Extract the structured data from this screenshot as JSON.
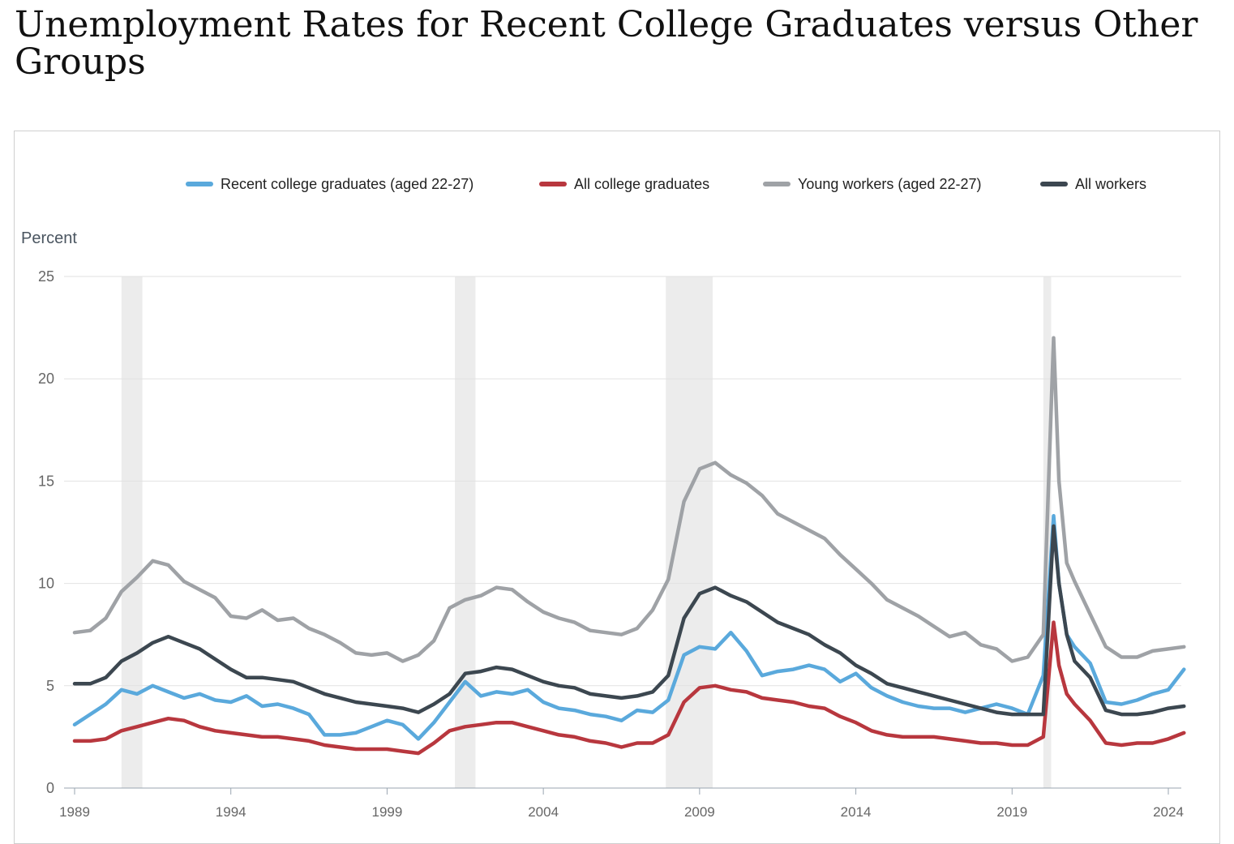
{
  "title": "Unemployment Rates for Recent College Graduates versus Other Groups",
  "chart_data": {
    "type": "line",
    "ylabel": "Percent",
    "xlabel": "",
    "ylim": [
      0,
      25
    ],
    "xlim": [
      1989.0,
      2024.6
    ],
    "yticks": [
      0,
      5,
      10,
      15,
      20,
      25
    ],
    "xticks": [
      1989,
      1994,
      1999,
      2004,
      2009,
      2014,
      2019,
      2024
    ],
    "grid": true,
    "legend_position": "top",
    "recessions": [
      [
        1990.5,
        1991.17
      ],
      [
        2001.17,
        2001.83
      ],
      [
        2007.92,
        2009.42
      ],
      [
        2020.0,
        2020.25
      ]
    ],
    "series": [
      {
        "name": "Recent college graduates (aged 22-27)",
        "color": "#5aa9dc",
        "x": [
          1989.0,
          1989.5,
          1990.0,
          1990.5,
          1991.0,
          1991.5,
          1992.0,
          1992.5,
          1993.0,
          1993.5,
          1994.0,
          1994.5,
          1995.0,
          1995.5,
          1996.0,
          1996.5,
          1997.0,
          1997.5,
          1998.0,
          1998.5,
          1999.0,
          1999.5,
          2000.0,
          2000.5,
          2001.0,
          2001.5,
          2002.0,
          2002.5,
          2003.0,
          2003.5,
          2004.0,
          2004.5,
          2005.0,
          2005.5,
          2006.0,
          2006.5,
          2007.0,
          2007.5,
          2008.0,
          2008.5,
          2009.0,
          2009.5,
          2010.0,
          2010.5,
          2011.0,
          2011.5,
          2012.0,
          2012.5,
          2013.0,
          2013.5,
          2014.0,
          2014.5,
          2015.0,
          2015.5,
          2016.0,
          2016.5,
          2017.0,
          2017.5,
          2018.0,
          2018.5,
          2019.0,
          2019.5,
          2020.0,
          2020.33,
          2020.5,
          2020.75,
          2021.0,
          2021.5,
          2022.0,
          2022.5,
          2023.0,
          2023.5,
          2024.0,
          2024.5
        ],
        "y": [
          3.1,
          3.6,
          4.1,
          4.8,
          4.6,
          5.0,
          4.7,
          4.4,
          4.6,
          4.3,
          4.2,
          4.5,
          4.0,
          4.1,
          3.9,
          3.6,
          2.6,
          2.6,
          2.7,
          3.0,
          3.3,
          3.1,
          2.4,
          3.2,
          4.2,
          5.2,
          4.5,
          4.7,
          4.6,
          4.8,
          4.2,
          3.9,
          3.8,
          3.6,
          3.5,
          3.3,
          3.8,
          3.7,
          4.3,
          6.5,
          6.9,
          6.8,
          7.6,
          6.7,
          5.5,
          5.7,
          5.8,
          6.0,
          5.8,
          5.2,
          5.6,
          4.9,
          4.5,
          4.2,
          4.0,
          3.9,
          3.9,
          3.7,
          3.9,
          4.1,
          3.9,
          3.6,
          5.5,
          13.3,
          10.0,
          7.5,
          6.9,
          6.1,
          4.2,
          4.1,
          4.3,
          4.6,
          4.8,
          5.8
        ]
      },
      {
        "name": "All college graduates",
        "color": "#b8373e",
        "x": [
          1989.0,
          1989.5,
          1990.0,
          1990.5,
          1991.0,
          1991.5,
          1992.0,
          1992.5,
          1993.0,
          1993.5,
          1994.0,
          1994.5,
          1995.0,
          1995.5,
          1996.0,
          1996.5,
          1997.0,
          1997.5,
          1998.0,
          1998.5,
          1999.0,
          1999.5,
          2000.0,
          2000.5,
          2001.0,
          2001.5,
          2002.0,
          2002.5,
          2003.0,
          2003.5,
          2004.0,
          2004.5,
          2005.0,
          2005.5,
          2006.0,
          2006.5,
          2007.0,
          2007.5,
          2008.0,
          2008.5,
          2009.0,
          2009.5,
          2010.0,
          2010.5,
          2011.0,
          2011.5,
          2012.0,
          2012.5,
          2013.0,
          2013.5,
          2014.0,
          2014.5,
          2015.0,
          2015.5,
          2016.0,
          2016.5,
          2017.0,
          2017.5,
          2018.0,
          2018.5,
          2019.0,
          2019.5,
          2020.0,
          2020.33,
          2020.5,
          2020.75,
          2021.0,
          2021.5,
          2022.0,
          2022.5,
          2023.0,
          2023.5,
          2024.0,
          2024.5
        ],
        "y": [
          2.3,
          2.3,
          2.4,
          2.8,
          3.0,
          3.2,
          3.4,
          3.3,
          3.0,
          2.8,
          2.7,
          2.6,
          2.5,
          2.5,
          2.4,
          2.3,
          2.1,
          2.0,
          1.9,
          1.9,
          1.9,
          1.8,
          1.7,
          2.2,
          2.8,
          3.0,
          3.1,
          3.2,
          3.2,
          3.0,
          2.8,
          2.6,
          2.5,
          2.3,
          2.2,
          2.0,
          2.2,
          2.2,
          2.6,
          4.2,
          4.9,
          5.0,
          4.8,
          4.7,
          4.4,
          4.3,
          4.2,
          4.0,
          3.9,
          3.5,
          3.2,
          2.8,
          2.6,
          2.5,
          2.5,
          2.5,
          2.4,
          2.3,
          2.2,
          2.2,
          2.1,
          2.1,
          2.5,
          8.1,
          6.0,
          4.6,
          4.1,
          3.3,
          2.2,
          2.1,
          2.2,
          2.2,
          2.4,
          2.7
        ]
      },
      {
        "name": "Young workers (aged 22-27)",
        "color": "#9fa2a6",
        "x": [
          1989.0,
          1989.5,
          1990.0,
          1990.5,
          1991.0,
          1991.5,
          1992.0,
          1992.5,
          1993.0,
          1993.5,
          1994.0,
          1994.5,
          1995.0,
          1995.5,
          1996.0,
          1996.5,
          1997.0,
          1997.5,
          1998.0,
          1998.5,
          1999.0,
          1999.5,
          2000.0,
          2000.5,
          2001.0,
          2001.5,
          2002.0,
          2002.5,
          2003.0,
          2003.5,
          2004.0,
          2004.5,
          2005.0,
          2005.5,
          2006.0,
          2006.5,
          2007.0,
          2007.5,
          2008.0,
          2008.5,
          2009.0,
          2009.5,
          2010.0,
          2010.5,
          2011.0,
          2011.5,
          2012.0,
          2012.5,
          2013.0,
          2013.5,
          2014.0,
          2014.5,
          2015.0,
          2015.5,
          2016.0,
          2016.5,
          2017.0,
          2017.5,
          2018.0,
          2018.5,
          2019.0,
          2019.5,
          2020.0,
          2020.33,
          2020.5,
          2020.75,
          2021.0,
          2021.5,
          2022.0,
          2022.5,
          2023.0,
          2023.5,
          2024.0,
          2024.5
        ],
        "y": [
          7.6,
          7.7,
          8.3,
          9.6,
          10.3,
          11.1,
          10.9,
          10.1,
          9.7,
          9.3,
          8.4,
          8.3,
          8.7,
          8.2,
          8.3,
          7.8,
          7.5,
          7.1,
          6.6,
          6.5,
          6.6,
          6.2,
          6.5,
          7.2,
          8.8,
          9.2,
          9.4,
          9.8,
          9.7,
          9.1,
          8.6,
          8.3,
          8.1,
          7.7,
          7.6,
          7.5,
          7.8,
          8.7,
          10.2,
          14.0,
          15.6,
          15.9,
          15.3,
          14.9,
          14.3,
          13.4,
          13.0,
          12.6,
          12.2,
          11.4,
          10.7,
          10.0,
          9.2,
          8.8,
          8.4,
          7.9,
          7.4,
          7.6,
          7.0,
          6.8,
          6.2,
          6.4,
          7.5,
          22.0,
          15.0,
          11.0,
          10.1,
          8.5,
          6.9,
          6.4,
          6.4,
          6.7,
          6.8,
          6.9
        ]
      },
      {
        "name": "All workers",
        "color": "#3c4750",
        "x": [
          1989.0,
          1989.5,
          1990.0,
          1990.5,
          1991.0,
          1991.5,
          1992.0,
          1992.5,
          1993.0,
          1993.5,
          1994.0,
          1994.5,
          1995.0,
          1995.5,
          1996.0,
          1996.5,
          1997.0,
          1997.5,
          1998.0,
          1998.5,
          1999.0,
          1999.5,
          2000.0,
          2000.5,
          2001.0,
          2001.5,
          2002.0,
          2002.5,
          2003.0,
          2003.5,
          2004.0,
          2004.5,
          2005.0,
          2005.5,
          2006.0,
          2006.5,
          2007.0,
          2007.5,
          2008.0,
          2008.5,
          2009.0,
          2009.5,
          2010.0,
          2010.5,
          2011.0,
          2011.5,
          2012.0,
          2012.5,
          2013.0,
          2013.5,
          2014.0,
          2014.5,
          2015.0,
          2015.5,
          2016.0,
          2016.5,
          2017.0,
          2017.5,
          2018.0,
          2018.5,
          2019.0,
          2019.5,
          2020.0,
          2020.33,
          2020.5,
          2020.75,
          2021.0,
          2021.5,
          2022.0,
          2022.5,
          2023.0,
          2023.5,
          2024.0,
          2024.5
        ],
        "y": [
          5.1,
          5.1,
          5.4,
          6.2,
          6.6,
          7.1,
          7.4,
          7.1,
          6.8,
          6.3,
          5.8,
          5.4,
          5.4,
          5.3,
          5.2,
          4.9,
          4.6,
          4.4,
          4.2,
          4.1,
          4.0,
          3.9,
          3.7,
          4.1,
          4.6,
          5.6,
          5.7,
          5.9,
          5.8,
          5.5,
          5.2,
          5.0,
          4.9,
          4.6,
          4.5,
          4.4,
          4.5,
          4.7,
          5.5,
          8.3,
          9.5,
          9.8,
          9.4,
          9.1,
          8.6,
          8.1,
          7.8,
          7.5,
          7.0,
          6.6,
          6.0,
          5.6,
          5.1,
          4.9,
          4.7,
          4.5,
          4.3,
          4.1,
          3.9,
          3.7,
          3.6,
          3.6,
          3.6,
          12.8,
          10.0,
          7.5,
          6.2,
          5.4,
          3.8,
          3.6,
          3.6,
          3.7,
          3.9,
          4.0
        ]
      }
    ]
  }
}
